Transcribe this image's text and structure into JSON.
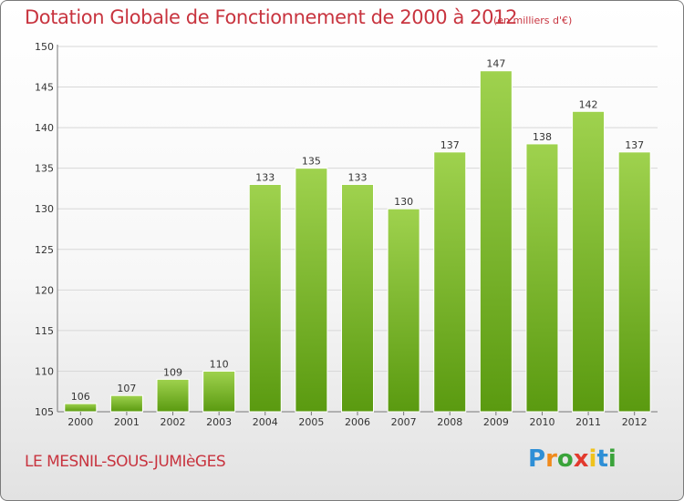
{
  "title": "Dotation Globale de Fonctionnement de 2000 à 2012",
  "unit": "(en milliers d'€)",
  "commune": "LE MESNIL-SOUS-JUMIèGES",
  "logo": {
    "text": "Proxiti",
    "letter_colors": [
      "#2e8fd6",
      "#f08a1c",
      "#3aa33a",
      "#e23a2e",
      "#f0c21c",
      "#2e8fd6",
      "#3aa33a"
    ]
  },
  "colors": {
    "title": "#c8343f",
    "bar_top": "#9fd24e",
    "bar_bottom": "#5a9a10",
    "grid": "#d8d8d8",
    "axis": "#777777"
  },
  "chart_data": {
    "type": "bar",
    "title": "Dotation Globale de Fonctionnement de 2000 à 2012",
    "categories": [
      "2000",
      "2001",
      "2002",
      "2003",
      "2004",
      "2005",
      "2006",
      "2007",
      "2008",
      "2009",
      "2010",
      "2011",
      "2012"
    ],
    "values": [
      106,
      107,
      109,
      110,
      133,
      135,
      133,
      130,
      137,
      147,
      138,
      142,
      137
    ],
    "ylim": [
      105,
      150
    ],
    "yticks": [
      105,
      110,
      115,
      120,
      125,
      130,
      135,
      140,
      145,
      150
    ],
    "xlabel": "",
    "ylabel": "",
    "grid": true
  }
}
